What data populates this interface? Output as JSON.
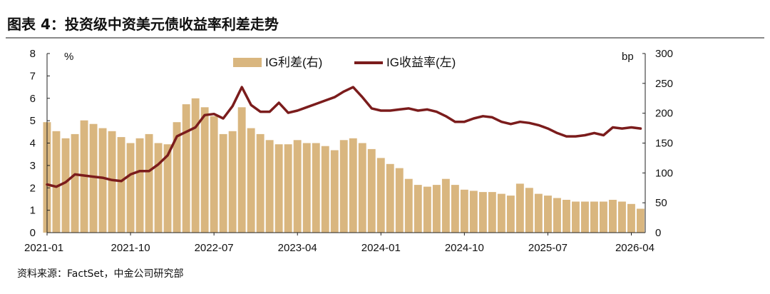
{
  "title": "图表 4：投资级中资美元债收益率利差走势",
  "source": "资料来源：FactSet，中金公司研究部",
  "chart_data": {
    "type": "bar+line",
    "left_axis_unit": "%",
    "right_axis_unit": "bp",
    "left_ylim": [
      0,
      8
    ],
    "right_ylim": [
      0,
      300
    ],
    "left_ticks": [
      "0",
      "1",
      "2",
      "3",
      "4",
      "5",
      "6",
      "7",
      "8"
    ],
    "right_ticks": [
      "0",
      "50",
      "100",
      "150",
      "200",
      "250",
      "300"
    ],
    "x_tick_labels": [
      "2021-01",
      "2021-10",
      "2022-07",
      "2023-04",
      "2024-01",
      "2024-10",
      "2025-07",
      "2026-04"
    ],
    "x_range": [
      "2021-01",
      "2026-05"
    ],
    "legend_position": "top-center",
    "grid": false,
    "colors": {
      "spread": "#D9B67F",
      "yield": "#7B1C1C"
    },
    "series": [
      {
        "name": "IG利差(右)",
        "axis": "right",
        "kind": "bar",
        "points": [
          [
            "2021-01",
            185
          ],
          [
            "2021-02",
            170
          ],
          [
            "2021-03",
            158
          ],
          [
            "2021-04",
            165
          ],
          [
            "2021-05",
            188
          ],
          [
            "2021-06",
            182
          ],
          [
            "2021-07",
            175
          ],
          [
            "2021-08",
            170
          ],
          [
            "2021-09",
            160
          ],
          [
            "2021-10",
            150
          ],
          [
            "2021-11",
            158
          ],
          [
            "2021-12",
            165
          ],
          [
            "2022-01",
            150
          ],
          [
            "2022-02",
            148
          ],
          [
            "2022-03",
            185
          ],
          [
            "2022-04",
            215
          ],
          [
            "2022-05",
            225
          ],
          [
            "2022-06",
            210
          ],
          [
            "2022-07",
            195
          ],
          [
            "2022-08",
            165
          ],
          [
            "2022-09",
            170
          ],
          [
            "2022-10",
            210
          ],
          [
            "2022-11",
            175
          ],
          [
            "2022-12",
            165
          ],
          [
            "2023-01",
            155
          ],
          [
            "2023-02",
            148
          ],
          [
            "2023-03",
            148
          ],
          [
            "2023-04",
            155
          ],
          [
            "2023-05",
            150
          ],
          [
            "2023-06",
            150
          ],
          [
            "2023-07",
            145
          ],
          [
            "2023-08",
            138
          ],
          [
            "2023-09",
            155
          ],
          [
            "2023-10",
            158
          ],
          [
            "2023-11",
            150
          ],
          [
            "2023-12",
            140
          ],
          [
            "2024-01",
            125
          ],
          [
            "2024-02",
            115
          ],
          [
            "2024-03",
            108
          ],
          [
            "2024-04",
            90
          ],
          [
            "2024-05",
            80
          ],
          [
            "2024-06",
            77
          ],
          [
            "2024-07",
            80
          ],
          [
            "2024-08",
            90
          ],
          [
            "2024-09",
            80
          ],
          [
            "2024-10",
            72
          ],
          [
            "2024-11",
            70
          ],
          [
            "2024-12",
            68
          ],
          [
            "2025-01",
            68
          ],
          [
            "2025-02",
            65
          ],
          [
            "2025-03",
            62
          ],
          [
            "2025-04",
            82
          ],
          [
            "2025-05",
            75
          ],
          [
            "2025-06",
            65
          ],
          [
            "2025-07",
            62
          ],
          [
            "2025-08",
            58
          ],
          [
            "2025-09",
            55
          ],
          [
            "2025-10",
            52
          ],
          [
            "2025-11",
            52
          ],
          [
            "2025-12",
            52
          ],
          [
            "2026-01",
            52
          ],
          [
            "2026-02",
            55
          ],
          [
            "2026-03",
            52
          ],
          [
            "2026-04",
            48
          ],
          [
            "2026-05",
            40
          ]
        ]
      },
      {
        "name": "IG收益率(左)",
        "axis": "left",
        "kind": "line",
        "points": [
          [
            "2021-01",
            2.15
          ],
          [
            "2021-02",
            2.05
          ],
          [
            "2021-03",
            2.25
          ],
          [
            "2021-04",
            2.6
          ],
          [
            "2021-05",
            2.55
          ],
          [
            "2021-06",
            2.5
          ],
          [
            "2021-07",
            2.45
          ],
          [
            "2021-08",
            2.35
          ],
          [
            "2021-09",
            2.3
          ],
          [
            "2021-10",
            2.6
          ],
          [
            "2021-11",
            2.75
          ],
          [
            "2021-12",
            2.75
          ],
          [
            "2022-01",
            3.05
          ],
          [
            "2022-02",
            3.45
          ],
          [
            "2022-03",
            4.3
          ],
          [
            "2022-04",
            4.5
          ],
          [
            "2022-05",
            4.7
          ],
          [
            "2022-06",
            5.25
          ],
          [
            "2022-07",
            5.3
          ],
          [
            "2022-08",
            5.1
          ],
          [
            "2022-09",
            5.65
          ],
          [
            "2022-10",
            6.5
          ],
          [
            "2022-11",
            5.7
          ],
          [
            "2022-12",
            5.4
          ],
          [
            "2023-01",
            5.4
          ],
          [
            "2023-02",
            5.8
          ],
          [
            "2023-03",
            5.35
          ],
          [
            "2023-04",
            5.45
          ],
          [
            "2023-05",
            5.6
          ],
          [
            "2023-06",
            5.75
          ],
          [
            "2023-07",
            5.9
          ],
          [
            "2023-08",
            6.05
          ],
          [
            "2023-09",
            6.3
          ],
          [
            "2023-10",
            6.5
          ],
          [
            "2023-11",
            6.05
          ],
          [
            "2023-12",
            5.55
          ],
          [
            "2024-01",
            5.45
          ],
          [
            "2024-02",
            5.45
          ],
          [
            "2024-03",
            5.5
          ],
          [
            "2024-04",
            5.55
          ],
          [
            "2024-05",
            5.45
          ],
          [
            "2024-06",
            5.5
          ],
          [
            "2024-07",
            5.4
          ],
          [
            "2024-08",
            5.2
          ],
          [
            "2024-09",
            4.95
          ],
          [
            "2024-10",
            4.95
          ],
          [
            "2024-11",
            5.1
          ],
          [
            "2024-12",
            5.2
          ],
          [
            "2025-01",
            5.15
          ],
          [
            "2025-02",
            4.95
          ],
          [
            "2025-03",
            4.85
          ],
          [
            "2025-04",
            4.95
          ],
          [
            "2025-05",
            4.9
          ],
          [
            "2025-06",
            4.8
          ],
          [
            "2025-07",
            4.65
          ],
          [
            "2025-08",
            4.45
          ],
          [
            "2025-09",
            4.3
          ],
          [
            "2025-10",
            4.3
          ],
          [
            "2025-11",
            4.35
          ],
          [
            "2025-12",
            4.45
          ],
          [
            "2026-01",
            4.35
          ],
          [
            "2026-02",
            4.7
          ],
          [
            "2026-03",
            4.65
          ],
          [
            "2026-04",
            4.7
          ],
          [
            "2026-05",
            4.65
          ]
        ]
      }
    ]
  }
}
